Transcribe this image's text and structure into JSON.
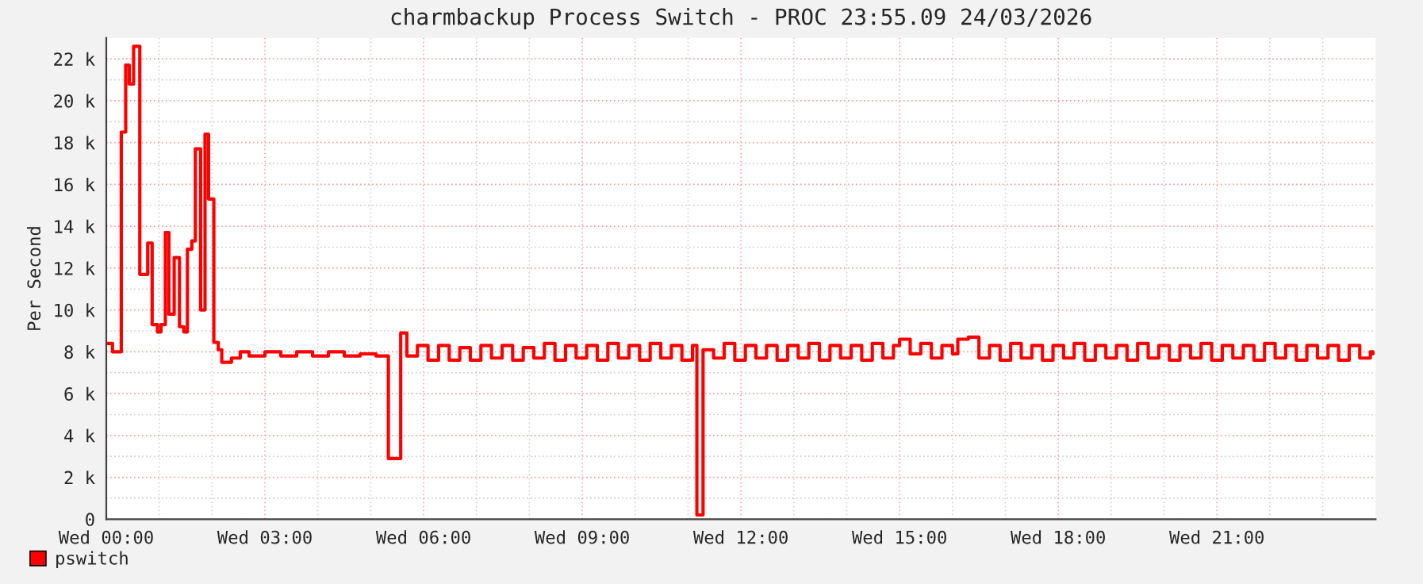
{
  "chart_data": {
    "type": "step",
    "title": "charmbackup Process Switch - PROC 23:55.09 24/03/2026",
    "ylabel": "Per Second",
    "xlim": [
      "2026-03-25T00:00",
      "2026-03-26T00:00"
    ],
    "xticks": [
      {
        "value": "2026-03-25T00:00",
        "label": "Wed 00:00"
      },
      {
        "value": "2026-03-25T03:00",
        "label": "Wed 03:00"
      },
      {
        "value": "2026-03-25T06:00",
        "label": "Wed 06:00"
      },
      {
        "value": "2026-03-25T09:00",
        "label": "Wed 09:00"
      },
      {
        "value": "2026-03-25T12:00",
        "label": "Wed 12:00"
      },
      {
        "value": "2026-03-25T15:00",
        "label": "Wed 15:00"
      },
      {
        "value": "2026-03-25T18:00",
        "label": "Wed 18:00"
      },
      {
        "value": "2026-03-25T21:00",
        "label": "Wed 21:00"
      }
    ],
    "ylim": [
      0,
      23
    ],
    "yticks": [
      {
        "value": 0,
        "label": "0"
      },
      {
        "value": 2,
        "label": "2 k"
      },
      {
        "value": 4,
        "label": "4 k"
      },
      {
        "value": 6,
        "label": "6 k"
      },
      {
        "value": 8,
        "label": "8 k"
      },
      {
        "value": 10,
        "label": "10 k"
      },
      {
        "value": 12,
        "label": "12 k"
      },
      {
        "value": 14,
        "label": "14 k"
      },
      {
        "value": 16,
        "label": "16 k"
      },
      {
        "value": 18,
        "label": "18 k"
      },
      {
        "value": 20,
        "label": "20 k"
      },
      {
        "value": 22,
        "label": "22 k"
      }
    ],
    "grid": true,
    "legend": "bottom left",
    "series": [
      {
        "name": "pswitch",
        "color": "#ff0000",
        "x": [
          "2026-03-25T00:01",
          "2026-03-25T00:07",
          "2026-03-25T00:17",
          "2026-03-25T00:22",
          "2026-03-25T00:26",
          "2026-03-25T00:31",
          "2026-03-25T00:38",
          "2026-03-25T00:47",
          "2026-03-25T00:52",
          "2026-03-25T00:58",
          "2026-03-25T01:02",
          "2026-03-25T01:07",
          "2026-03-25T01:11",
          "2026-03-25T01:17",
          "2026-03-25T01:23",
          "2026-03-25T01:28",
          "2026-03-25T01:32",
          "2026-03-25T01:37",
          "2026-03-25T01:41",
          "2026-03-25T01:47",
          "2026-03-25T01:52",
          "2026-03-25T01:56",
          "2026-03-25T02:02",
          "2026-03-25T02:07",
          "2026-03-25T02:11",
          "2026-03-25T02:22",
          "2026-03-25T02:32",
          "2026-03-25T02:42",
          "2026-03-25T03:00",
          "2026-03-25T03:18",
          "2026-03-25T03:36",
          "2026-03-25T03:54",
          "2026-03-25T04:12",
          "2026-03-25T04:30",
          "2026-03-25T04:48",
          "2026-03-25T05:06",
          "2026-03-25T05:20",
          "2026-03-25T05:34",
          "2026-03-25T05:41",
          "2026-03-25T05:53",
          "2026-03-25T06:05",
          "2026-03-25T06:17",
          "2026-03-25T06:29",
          "2026-03-25T06:41",
          "2026-03-25T06:53",
          "2026-03-25T07:05",
          "2026-03-25T07:17",
          "2026-03-25T07:29",
          "2026-03-25T07:41",
          "2026-03-25T07:53",
          "2026-03-25T08:05",
          "2026-03-25T08:17",
          "2026-03-25T08:29",
          "2026-03-25T08:41",
          "2026-03-25T08:53",
          "2026-03-25T09:05",
          "2026-03-25T09:17",
          "2026-03-25T09:29",
          "2026-03-25T09:41",
          "2026-03-25T09:53",
          "2026-03-25T10:05",
          "2026-03-25T10:17",
          "2026-03-25T10:29",
          "2026-03-25T10:41",
          "2026-03-25T10:53",
          "2026-03-25T11:05",
          "2026-03-25T11:10",
          "2026-03-25T11:17",
          "2026-03-25T11:29",
          "2026-03-25T11:41",
          "2026-03-25T11:53",
          "2026-03-25T12:05",
          "2026-03-25T12:17",
          "2026-03-25T12:29",
          "2026-03-25T12:41",
          "2026-03-25T12:53",
          "2026-03-25T13:05",
          "2026-03-25T13:17",
          "2026-03-25T13:29",
          "2026-03-25T13:41",
          "2026-03-25T13:53",
          "2026-03-25T14:05",
          "2026-03-25T14:17",
          "2026-03-25T14:29",
          "2026-03-25T14:41",
          "2026-03-25T14:53",
          "2026-03-25T15:00",
          "2026-03-25T15:12",
          "2026-03-25T15:24",
          "2026-03-25T15:36",
          "2026-03-25T15:48",
          "2026-03-25T16:00",
          "2026-03-25T16:06",
          "2026-03-25T16:18",
          "2026-03-25T16:30",
          "2026-03-25T16:42",
          "2026-03-25T16:54",
          "2026-03-25T17:06",
          "2026-03-25T17:18",
          "2026-03-25T17:30",
          "2026-03-25T17:42",
          "2026-03-25T17:54",
          "2026-03-25T18:06",
          "2026-03-25T18:18",
          "2026-03-25T18:30",
          "2026-03-25T18:42",
          "2026-03-25T18:54",
          "2026-03-25T19:06",
          "2026-03-25T19:18",
          "2026-03-25T19:30",
          "2026-03-25T19:42",
          "2026-03-25T19:54",
          "2026-03-25T20:06",
          "2026-03-25T20:18",
          "2026-03-25T20:30",
          "2026-03-25T20:42",
          "2026-03-25T20:54",
          "2026-03-25T21:06",
          "2026-03-25T21:18",
          "2026-03-25T21:30",
          "2026-03-25T21:42",
          "2026-03-25T21:54",
          "2026-03-25T22:06",
          "2026-03-25T22:18",
          "2026-03-25T22:30",
          "2026-03-25T22:42",
          "2026-03-25T22:54",
          "2026-03-25T23:06",
          "2026-03-25T23:18",
          "2026-03-25T23:30",
          "2026-03-25T23:42",
          "2026-03-25T23:54",
          "2026-03-25T23:57"
        ],
        "values": [
          8.4,
          8.0,
          18.5,
          21.7,
          20.8,
          22.6,
          11.7,
          13.2,
          9.3,
          8.95,
          9.3,
          13.7,
          9.8,
          12.5,
          9.2,
          8.95,
          12.9,
          13.3,
          17.7,
          10.0,
          18.4,
          15.3,
          8.45,
          8.1,
          7.5,
          7.7,
          8.0,
          7.8,
          8.0,
          7.8,
          8.0,
          7.8,
          8.0,
          7.8,
          7.9,
          7.8,
          2.9,
          8.9,
          7.8,
          8.3,
          7.6,
          8.3,
          7.6,
          8.2,
          7.6,
          8.3,
          7.7,
          8.3,
          7.6,
          8.2,
          7.7,
          8.4,
          7.6,
          8.3,
          7.7,
          8.3,
          7.6,
          8.4,
          7.7,
          8.3,
          7.6,
          8.4,
          7.7,
          8.3,
          7.6,
          8.3,
          0.2,
          8.1,
          7.7,
          8.4,
          7.6,
          8.3,
          7.7,
          8.3,
          7.6,
          8.3,
          7.7,
          8.4,
          7.6,
          8.3,
          7.7,
          8.3,
          7.6,
          8.4,
          7.7,
          8.3,
          8.6,
          7.9,
          8.4,
          7.7,
          8.3,
          7.9,
          8.6,
          8.7,
          7.7,
          8.3,
          7.6,
          8.4,
          7.7,
          8.3,
          7.6,
          8.3,
          7.7,
          8.4,
          7.6,
          8.3,
          7.7,
          8.3,
          7.6,
          8.4,
          7.7,
          8.3,
          7.6,
          8.3,
          7.7,
          8.4,
          7.6,
          8.3,
          7.7,
          8.3,
          7.6,
          8.4,
          7.7,
          8.3,
          7.6,
          8.3,
          7.7,
          8.3,
          7.6,
          8.3,
          7.7,
          8.0,
          7.9
        ]
      }
    ]
  }
}
